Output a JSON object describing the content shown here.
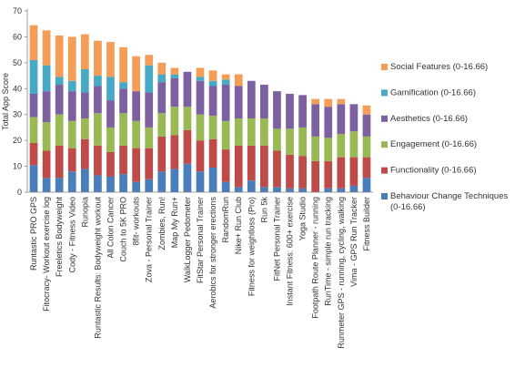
{
  "chart_data": {
    "type": "bar",
    "stacked": true,
    "title": "",
    "xlabel": "",
    "ylabel": "Total App Score",
    "ylim": [
      0,
      70
    ],
    "yticks": [
      "0",
      "10",
      "20",
      "30",
      "40",
      "50",
      "60",
      "70"
    ],
    "grid": false,
    "legend_position": "right",
    "categories": [
      "Runtastic PRO GPS",
      "Fitocracy- Workout exercise log",
      "Freeletics Bodyweight",
      "Cody - Fitness Video",
      "Runopia",
      "Runtastic Results: Bodyweight workout",
      "All Colon Cancer",
      "Couch to 5K PRO",
      "8fit- workouts",
      "Zova - Personal Trainer",
      "Zombies, Run!",
      "Map My Run+",
      "WalkLogger Pedometer",
      "FitStar Personal Trainer",
      "Aerobics for stronger erections",
      "RandomRun",
      "Nike+ Run Club",
      "Fitness for weightloss (Pro)",
      "Run 5k",
      "FitNet Personal Trainer",
      "Instant Fitness: 600+ exercise",
      "Yoga Studio",
      "Footpath Route Planner - running",
      "RunTime - simple run tracking",
      "Runmeter GPS - running, cycling, walking",
      "Vima - GPS Run Tracker",
      "Fitness Builder"
    ],
    "series": [
      {
        "name": "Behaviour Change Techniques (0-16.66)",
        "color": "#4a7ebb",
        "values": [
          10.5,
          5.5,
          5.5,
          8,
          9,
          6.5,
          6,
          7,
          4,
          5,
          8,
          9,
          11,
          8,
          9.5,
          4,
          2,
          4.5,
          2,
          2,
          1.5,
          1.5,
          0,
          1.5,
          1.5,
          2.5,
          5.5
        ]
      },
      {
        "name": "Functionality (0-16.66)",
        "color": "#be4b48",
        "values": [
          8.5,
          10.5,
          12.5,
          9,
          11.5,
          11.5,
          9.5,
          11,
          13,
          12,
          13.5,
          13,
          13,
          12,
          11,
          12.5,
          16,
          13.5,
          16,
          14,
          13,
          12.5,
          12,
          10.5,
          12,
          11,
          8
        ]
      },
      {
        "name": "Engagement (0-16.66)",
        "color": "#98b954",
        "values": [
          10,
          11,
          12,
          10.5,
          8,
          12.5,
          9.5,
          12.5,
          10.5,
          8,
          9,
          11,
          9,
          10,
          9,
          11,
          10.5,
          10.5,
          10.5,
          8.5,
          10,
          11,
          9.5,
          9,
          9,
          10,
          8
        ]
      },
      {
        "name": "Aesthetics (0-16.66)",
        "color": "#7d60a0",
        "values": [
          9,
          12,
          11.5,
          11.5,
          10,
          10.5,
          10.5,
          9.5,
          11.5,
          13.5,
          12,
          11,
          13.5,
          13,
          11.5,
          14,
          12.5,
          14.5,
          13,
          14.5,
          13.5,
          12.5,
          12.5,
          12,
          11.5,
          10.5,
          8.5
        ]
      },
      {
        "name": "Gamification (0-16.66)",
        "color": "#46aac5",
        "values": [
          13,
          10,
          3,
          4,
          9,
          4,
          9,
          2.5,
          0,
          10.5,
          3,
          1.5,
          0,
          1.5,
          2,
          2,
          0,
          0,
          0,
          0,
          0,
          0,
          0,
          0,
          0,
          0,
          0
        ]
      },
      {
        "name": "Social Features (0-16.66)",
        "color": "#f59d56",
        "values": [
          13.5,
          13.5,
          16,
          17,
          13.5,
          13.5,
          13.5,
          13.5,
          13.5,
          4,
          4.5,
          2.5,
          0,
          3.5,
          4,
          2,
          4.5,
          0,
          0,
          0,
          0,
          0,
          2,
          3,
          2,
          0,
          3.5
        ]
      }
    ]
  }
}
